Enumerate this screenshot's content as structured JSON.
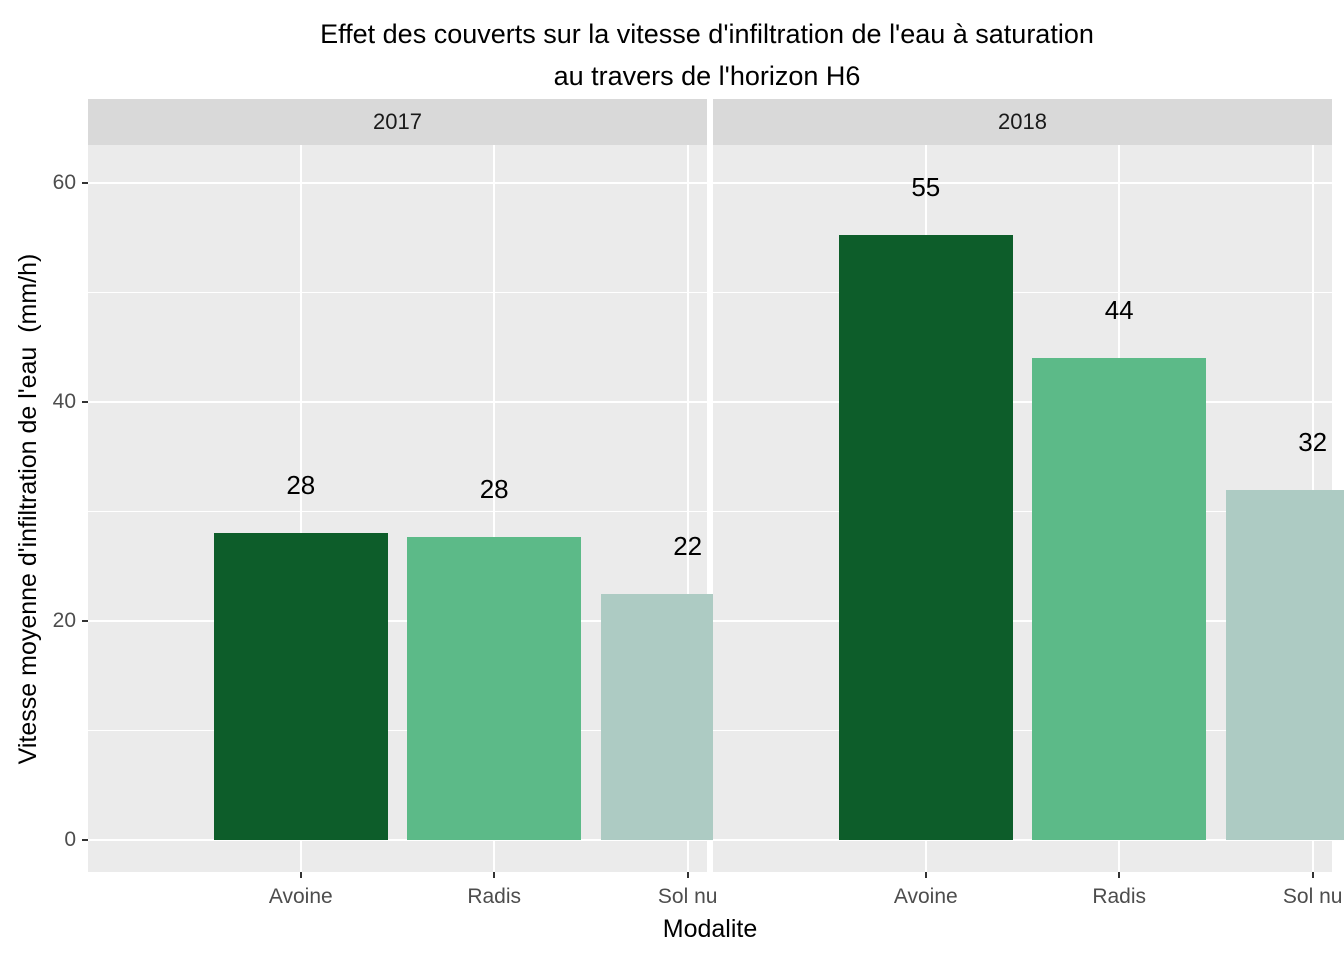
{
  "title": {
    "line1": "Effet des couverts sur la vitesse d'infiltration de l'eau à saturation",
    "line2": "au travers de l'horizon H6"
  },
  "chart_data": {
    "type": "bar",
    "faceted_by_year": true,
    "categories": [
      "Avoine",
      "Radis",
      "Sol nu"
    ],
    "xlabel": "Modalite",
    "ylabel": "Vitesse moyenne d'infiltration de l'eau  (mm/h)",
    "ylim": [
      0,
      63.4
    ],
    "y_major_ticks": [
      0,
      20,
      40,
      60
    ],
    "y_minor_ticks": [
      10,
      30,
      50
    ],
    "grid": "white major+minor horizontal, white vertical at category centers",
    "legend_position": "none",
    "facets": [
      {
        "label": "2017",
        "bar_labels": [
          "28",
          "28",
          "22"
        ],
        "values": [
          28,
          28,
          22
        ],
        "values_exact": [
          28.0,
          27.7,
          22.5
        ]
      },
      {
        "label": "2018",
        "bar_labels": [
          "55",
          "44",
          "32"
        ],
        "values": [
          55,
          44,
          32
        ],
        "values_exact": [
          55.3,
          44.0,
          32.0
        ]
      }
    ],
    "bar_colors_by_category": [
      "#0d5d2a",
      "#5cba88",
      "#adcbc3"
    ]
  },
  "style": {
    "background": "#ffffff",
    "panel_bg": "#ebebeb",
    "strip_bg": "#d9d9d9",
    "strip_text_color": "#1a1a1a",
    "grid_color": "#ffffff",
    "tick_label_color": "#4d4d4d",
    "tick_mark_color": "#333333",
    "text_color": "#000000"
  }
}
